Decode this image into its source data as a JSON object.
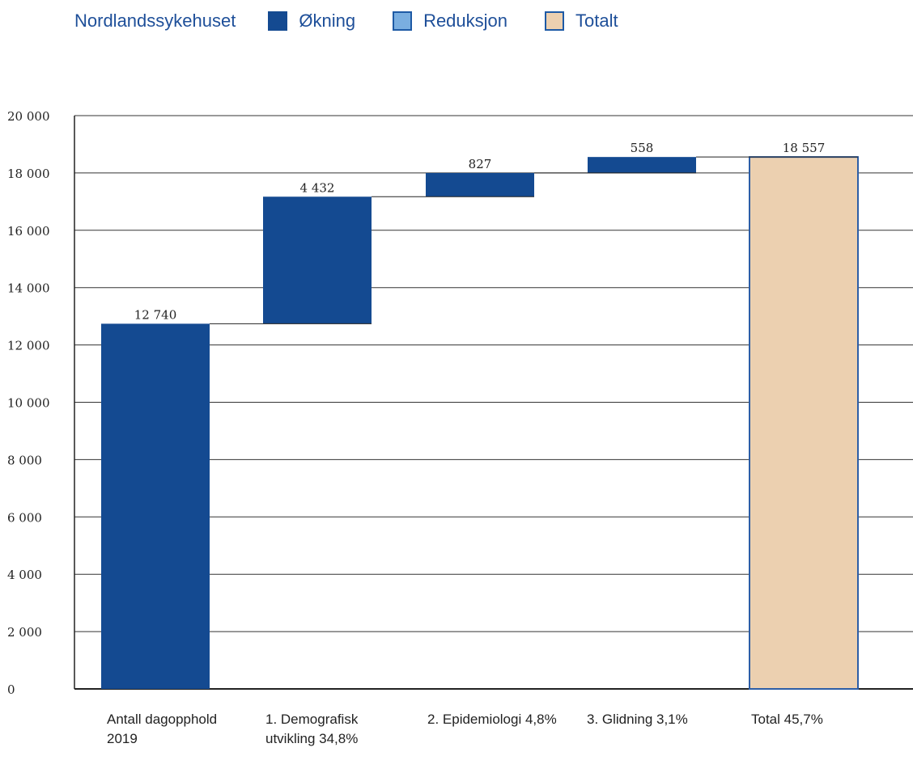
{
  "legend": {
    "title": "Nordlandssykehuset",
    "items": [
      {
        "label": "Økning",
        "color": "#144a91"
      },
      {
        "label": "Reduksjon",
        "color": "#7aaee0"
      },
      {
        "label": "Totalt",
        "color": "#ecd0b0"
      }
    ]
  },
  "chart_data": {
    "type": "bar",
    "subtype": "waterfall",
    "categories": [
      "Antall dagopphold 2019",
      "1. Demografisk utvikling 34,8%",
      "2. Epidemiologi 4,8%",
      "3. Glidning 3,1%",
      "Total 45,7%"
    ],
    "values": [
      12740,
      4432,
      827,
      558,
      18557
    ],
    "bar_kinds": [
      "okning",
      "okning",
      "okning",
      "okning",
      "totalt"
    ],
    "value_labels": [
      "12 740",
      "4 432",
      "827",
      "558",
      "18 557"
    ],
    "ylim": [
      0,
      20000
    ],
    "yticks": [
      0,
      2000,
      4000,
      6000,
      8000,
      10000,
      12000,
      14000,
      16000,
      18000,
      20000
    ],
    "ytick_labels": [
      "0",
      "2 000",
      "4 000",
      "6 000",
      "8 000",
      "10 000",
      "12 000",
      "14 000",
      "16 000",
      "18 000",
      "20 000"
    ],
    "grid": true,
    "legend_position": "top-left"
  }
}
